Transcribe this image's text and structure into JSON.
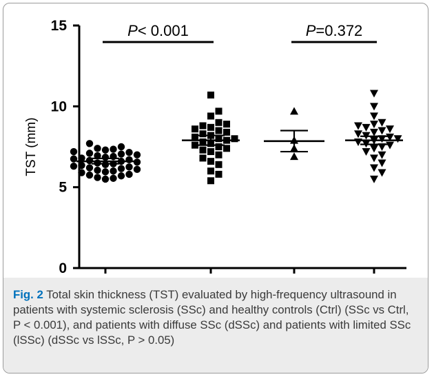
{
  "chart_data": {
    "type": "scatter",
    "ylabel": "TST (mm)",
    "ylim": [
      0,
      15
    ],
    "yticks": [
      0,
      5,
      10,
      15
    ],
    "categories": [
      "Ctrl",
      "SSc",
      "dSSc",
      "lSSc"
    ],
    "series": [
      {
        "category": "Ctrl",
        "marker": "circle",
        "mean": 6.6,
        "sem_low": 6.45,
        "sem_high": 6.78,
        "values": [
          5.5,
          5.55,
          5.6,
          5.7,
          5.75,
          5.8,
          5.9,
          5.95,
          6.0,
          6.05,
          6.1,
          6.15,
          6.2,
          6.25,
          6.3,
          6.35,
          6.4,
          6.45,
          6.5,
          6.55,
          6.6,
          6.65,
          6.7,
          6.75,
          6.8,
          6.85,
          6.9,
          6.95,
          7.0,
          7.05,
          7.1,
          7.15,
          7.2,
          7.3,
          7.35,
          7.4,
          7.5,
          7.7
        ]
      },
      {
        "category": "SSc",
        "marker": "square",
        "mean": 7.9,
        "sem_low": 7.6,
        "sem_high": 8.2,
        "values": [
          5.4,
          5.8,
          6.0,
          6.4,
          6.6,
          6.8,
          7.0,
          7.2,
          7.3,
          7.4,
          7.5,
          7.6,
          7.7,
          7.8,
          7.9,
          8.0,
          8.0,
          8.1,
          8.2,
          8.3,
          8.4,
          8.5,
          8.6,
          8.7,
          8.8,
          8.9,
          9.0,
          9.4,
          9.7,
          10.7
        ]
      },
      {
        "category": "dSSc",
        "marker": "triangle-up",
        "mean": 7.85,
        "sem_low": 7.2,
        "sem_high": 8.5,
        "values": [
          6.9,
          7.4,
          7.9,
          9.7
        ]
      },
      {
        "category": "lSSc",
        "marker": "triangle-down",
        "mean": 7.9,
        "sem_low": 7.65,
        "sem_high": 8.15,
        "values": [
          5.5,
          5.9,
          6.2,
          6.5,
          6.8,
          7.0,
          7.2,
          7.4,
          7.5,
          7.6,
          7.7,
          7.8,
          7.9,
          8.0,
          8.0,
          8.1,
          8.2,
          8.3,
          8.4,
          8.5,
          8.6,
          8.7,
          8.8,
          8.9,
          9.0,
          9.4,
          10.0,
          10.8
        ]
      }
    ],
    "annotations": [
      {
        "p_italic": "P",
        "p_text": "< 0.001",
        "from": "Ctrl",
        "to": "SSc"
      },
      {
        "p_italic": "P",
        "p_text": "=0.372",
        "from": "dSSc",
        "to": "lSSc"
      }
    ]
  },
  "caption": {
    "label": "Fig. 2",
    "text": "Total skin thickness (TST) evaluated by high-frequency ultrasound in patients with systemic sclerosis (SSc) and healthy controls (Ctrl) (SSc vs Ctrl, P < 0.001), and patients with diffuse SSc (dSSc) and patients with limited SSc (lSSc) (dSSc vs lSSc, P > 0.05)"
  },
  "colors": {
    "marker": "#000000",
    "caption_label": "#0071bc",
    "caption_bg": "#ececec",
    "frame": "#9a9a9a"
  }
}
